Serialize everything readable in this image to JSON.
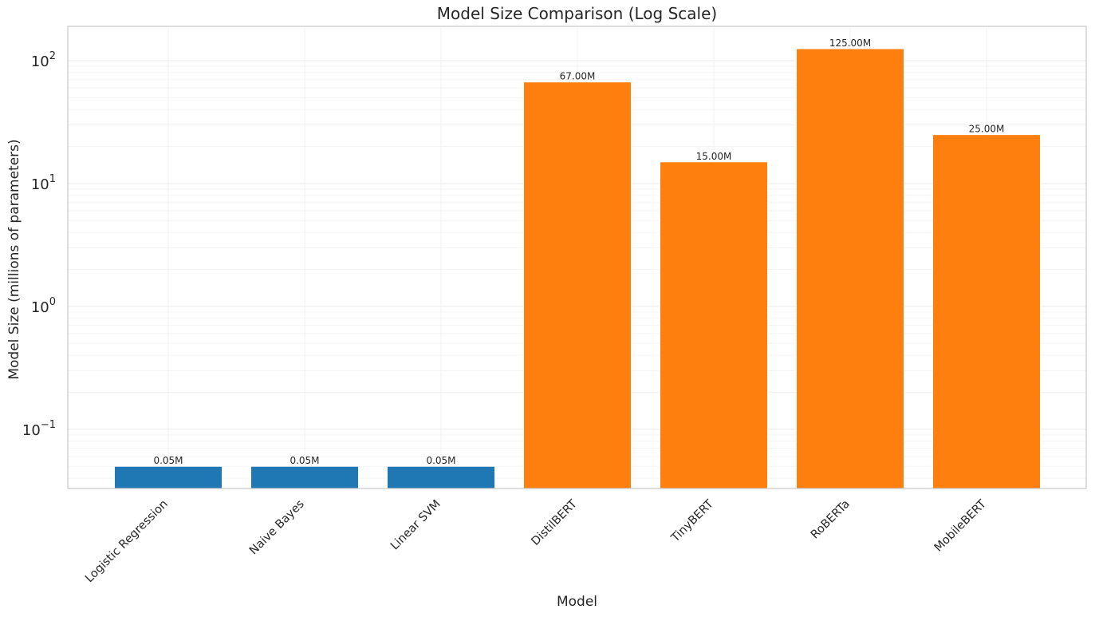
{
  "chart_data": {
    "type": "bar",
    "title": "Model Size Comparison (Log Scale)",
    "xlabel": "Model",
    "ylabel": "Model Size (millions of parameters)",
    "yscale": "log",
    "ylim": [
      0.033,
      190
    ],
    "y_ticks": [
      {
        "base": "10",
        "exp": "−1",
        "value": 0.1
      },
      {
        "base": "10",
        "exp": "0",
        "value": 1
      },
      {
        "base": "10",
        "exp": "1",
        "value": 10
      },
      {
        "base": "10",
        "exp": "2",
        "value": 100
      }
    ],
    "categories": [
      "Logistic Regression",
      "Naive Bayes",
      "Linear SVM",
      "DistilBERT",
      "TinyBERT",
      "RoBERTa",
      "MobileBERT"
    ],
    "values": [
      0.05,
      0.05,
      0.05,
      67,
      15,
      125,
      25
    ],
    "data_labels": [
      "0.05M",
      "0.05M",
      "0.05M",
      "67.00M",
      "15.00M",
      "125.00M",
      "25.00M"
    ],
    "bar_colors": [
      "#1f77b4",
      "#1f77b4",
      "#1f77b4",
      "#ff7f0e",
      "#ff7f0e",
      "#ff7f0e",
      "#ff7f0e"
    ],
    "grid": true,
    "legend": "none"
  }
}
